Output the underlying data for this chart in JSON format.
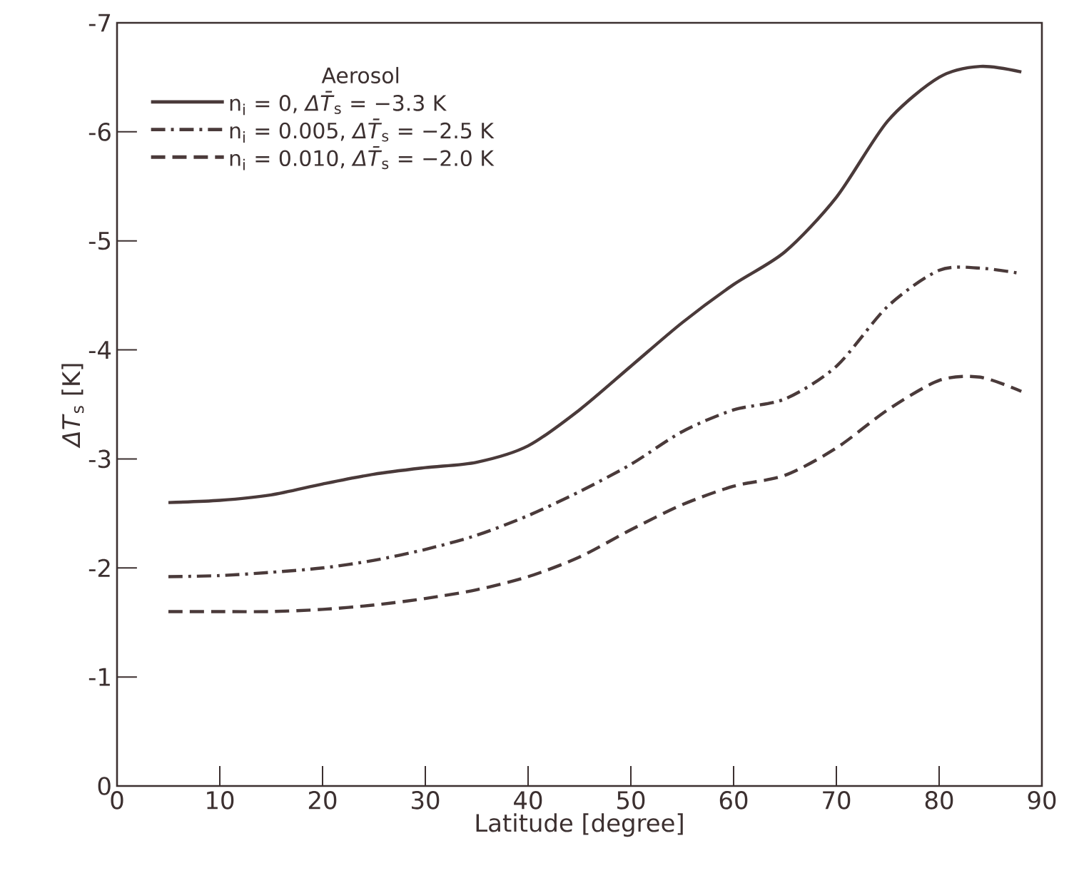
{
  "chart_data": {
    "type": "line",
    "xlabel": "Latitude [degree]",
    "ylabel": "*ΔT*$_{s}$ [K]",
    "legend_title": "Aerosol",
    "xlim": [
      0,
      90
    ],
    "xticks": [
      0,
      10,
      20,
      30,
      40,
      50,
      60,
      70,
      80,
      90
    ],
    "ylim": [
      0,
      -7
    ],
    "yticks": [
      0,
      -1,
      -2,
      -3,
      -4,
      -5,
      -6,
      -7
    ],
    "x": [
      5,
      10,
      15,
      20,
      25,
      30,
      35,
      40,
      45,
      50,
      55,
      60,
      65,
      70,
      75,
      80,
      84,
      88
    ],
    "legend": "top left",
    "grid": false,
    "marker": "none",
    "series": [
      {
        "name": "n$_{i}$ = 0, *ΔT̄*$_{s}$ = −3.3 K",
        "color": "#4a3a3a",
        "line_style": "solid",
        "values": [
          -2.6,
          -2.62,
          -2.67,
          -2.77,
          -2.86,
          -2.92,
          -2.97,
          -3.12,
          -3.45,
          -3.85,
          -4.25,
          -4.6,
          -4.9,
          -5.4,
          -6.1,
          -6.5,
          -6.6,
          -6.55
        ]
      },
      {
        "name": "n$_{i}$ = 0.005, *ΔT̄*$_{s}$ = −2.5 K",
        "color": "#4a3a3a",
        "line_style": "dashdot",
        "values": [
          -1.92,
          -1.93,
          -1.96,
          -2.0,
          -2.07,
          -2.17,
          -2.3,
          -2.48,
          -2.7,
          -2.95,
          -3.25,
          -3.45,
          -3.55,
          -3.85,
          -4.4,
          -4.73,
          -4.75,
          -4.7
        ]
      },
      {
        "name": "n$_{i}$ = 0.010, *ΔT̄*$_{s}$ = −2.0 K",
        "color": "#4a3a3a",
        "line_style": "dashed",
        "values": [
          -1.6,
          -1.6,
          -1.6,
          -1.62,
          -1.66,
          -1.72,
          -1.8,
          -1.92,
          -2.1,
          -2.35,
          -2.58,
          -2.75,
          -2.85,
          -3.1,
          -3.45,
          -3.72,
          -3.75,
          -3.62
        ]
      }
    ]
  }
}
